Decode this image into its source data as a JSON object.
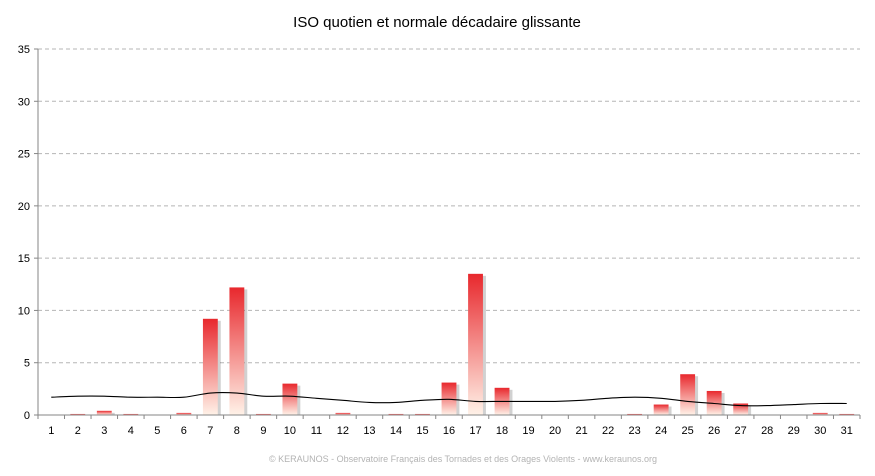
{
  "chart_data": {
    "type": "bar",
    "title": "ISO quotien et normale décadaire glissante",
    "xlabel": "",
    "ylabel": "",
    "categories": [
      "1",
      "2",
      "3",
      "4",
      "5",
      "6",
      "7",
      "8",
      "9",
      "10",
      "11",
      "12",
      "13",
      "14",
      "15",
      "16",
      "17",
      "18",
      "19",
      "20",
      "21",
      "22",
      "23",
      "24",
      "25",
      "26",
      "27",
      "28",
      "29",
      "30",
      "31"
    ],
    "ylim": [
      0,
      35
    ],
    "yticks": [
      "0",
      "5",
      "10",
      "15",
      "20",
      "25",
      "30",
      "35"
    ],
    "grid": true,
    "legend": "none",
    "series": [
      {
        "type": "bar",
        "values": [
          0,
          0.1,
          0.4,
          0.1,
          0,
          0.2,
          9.2,
          12.2,
          0.1,
          3.0,
          0,
          0.2,
          0,
          0.1,
          0.1,
          3.1,
          13.5,
          2.6,
          0,
          0,
          0,
          0,
          0.1,
          1.0,
          3.9,
          2.3,
          1.1,
          0,
          0,
          0.2,
          0.1
        ],
        "color_top": "#e8282d",
        "color_bottom": "#fff2e8"
      },
      {
        "type": "line",
        "values": [
          1.7,
          1.8,
          1.8,
          1.7,
          1.7,
          1.7,
          2.1,
          2.1,
          1.8,
          1.8,
          1.6,
          1.4,
          1.2,
          1.2,
          1.4,
          1.5,
          1.3,
          1.3,
          1.3,
          1.3,
          1.4,
          1.6,
          1.7,
          1.6,
          1.3,
          1.1,
          0.9,
          0.9,
          1.0,
          1.1,
          1.1
        ],
        "color": "#000000"
      }
    ]
  },
  "footer": "© KERAUNOS - Observatoire Français des Tornades et des Orages Violents - www.keraunos.org"
}
